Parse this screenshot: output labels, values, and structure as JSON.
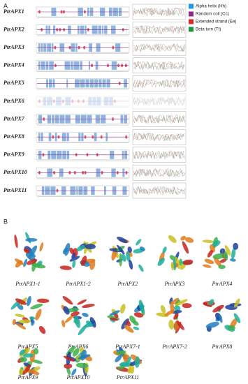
{
  "panel_a": {
    "label": "A",
    "rows": [
      "PtrAPX1",
      "PtrAPX2",
      "PtrAPX3",
      "PtrAPX4",
      "PtrAPX5",
      "PtrAPX6",
      "PtrAPX7",
      "PtrAPX8",
      "PtrAPX9",
      "PtrAPX10",
      "PtrAPX11"
    ],
    "legend": [
      {
        "label": "Alpha helix (Hh)",
        "color": "#1f9ae6"
      },
      {
        "label": "Random coil (Cc)",
        "color": "#8e2a8a"
      },
      {
        "label": "Extended strand (Ee)",
        "color": "#e0242b"
      },
      {
        "label": "Beta turn (Tt)",
        "color": "#1a9a3c"
      }
    ]
  },
  "panel_b": {
    "label": "B",
    "structures": [
      "PtrAPX1-1",
      "PtrAPX1-2",
      "PtrAPX2",
      "PtrAPX3",
      "PtrAPX4",
      "PtrAPX5",
      "PtrAPX6",
      "PtrAPX7-1",
      "PtrAPX7-2",
      "PtrAPX8",
      "PtrAPX9",
      "PtrAPX10",
      "PtrAPX11"
    ]
  }
}
